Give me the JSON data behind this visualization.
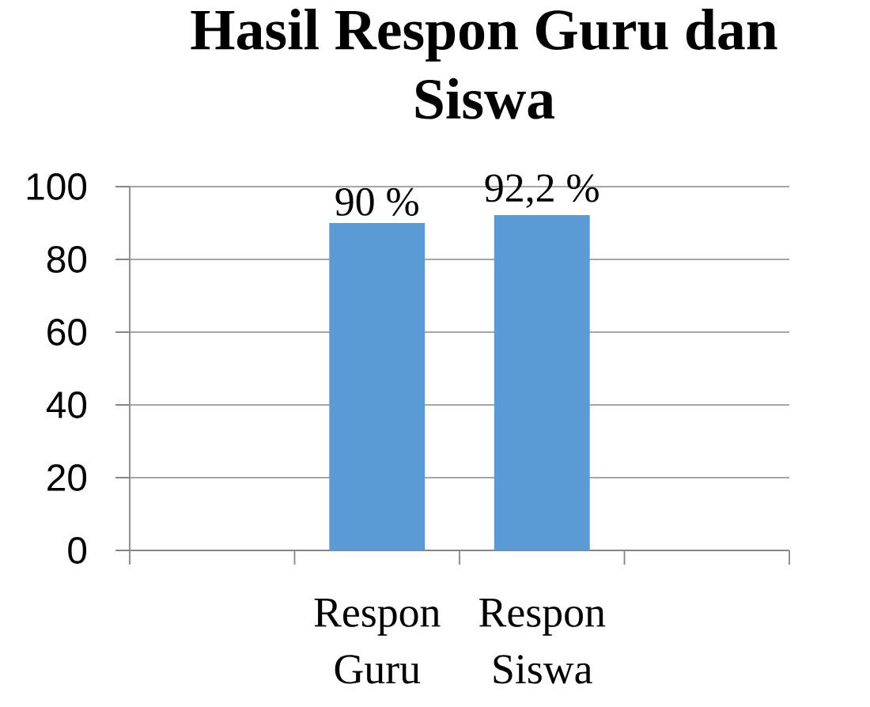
{
  "chart_data": {
    "type": "bar",
    "title": "Hasil Respon Guru dan Siswa",
    "categories": [
      null,
      "Respon Guru",
      "Respon Siswa",
      null
    ],
    "values": [
      null,
      90,
      92.2,
      null
    ],
    "value_labels": [
      null,
      "90 %",
      "92,2 %",
      null
    ],
    "color": "#5b9bd5",
    "ylim": [
      0,
      100
    ],
    "yticks": [
      0,
      20,
      40,
      60,
      80,
      100
    ],
    "grid": "y"
  }
}
